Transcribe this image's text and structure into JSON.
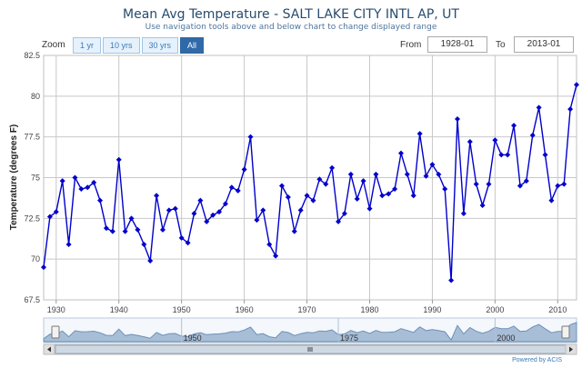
{
  "title": "Mean Avg Temperature - SALT LAKE CITY INTL AP, UT",
  "subtitle": "Use navigation tools above and below chart to change displayed range",
  "zoom": {
    "label": "Zoom",
    "buttons": [
      "1 yr",
      "10 yrs",
      "30 yrs",
      "All"
    ],
    "active": "All"
  },
  "range": {
    "from_label": "From",
    "from_value": "1928-01",
    "to_label": "To",
    "to_value": "2013-01"
  },
  "powered_by": "Powered by ACIS",
  "colors": {
    "series": "#0000cc",
    "navigator_fill": "#a7bed6",
    "navigator_line": "#6f90b8"
  },
  "chart_data": {
    "type": "line",
    "title": "Mean Avg Temperature - SALT LAKE CITY INTL AP, UT",
    "ylabel": "Temperature (degrees F)",
    "xlabel": "",
    "xlim": [
      1928,
      2013
    ],
    "ylim": [
      67.5,
      82.5
    ],
    "x_ticks": [
      "1930",
      "1940",
      "1950",
      "1960",
      "1970",
      "1980",
      "1990",
      "2000",
      "2010"
    ],
    "y_ticks": [
      "67.5",
      "70",
      "72.5",
      "75",
      "77.5",
      "80",
      "82.5"
    ],
    "navigator_ticks": [
      "1950",
      "1975",
      "2000"
    ],
    "grid": true,
    "series": [
      {
        "x": [
          1928,
          1929,
          1930,
          1931,
          1932,
          1933,
          1934,
          1935,
          1936,
          1937,
          1938,
          1939,
          1940,
          1941,
          1942,
          1943,
          1944,
          1945,
          1946,
          1947,
          1948,
          1949,
          1950,
          1951,
          1952,
          1953,
          1954,
          1955,
          1956,
          1957,
          1958,
          1959,
          1960,
          1961,
          1962,
          1963,
          1964,
          1965,
          1966,
          1967,
          1968,
          1969,
          1970,
          1971,
          1972,
          1973,
          1974,
          1975,
          1976,
          1977,
          1978,
          1979,
          1980,
          1981,
          1982,
          1983,
          1984,
          1985,
          1986,
          1987,
          1988,
          1989,
          1990,
          1991,
          1992,
          1993,
          1994,
          1995,
          1996,
          1997,
          1998,
          1999,
          2000,
          2001,
          2002,
          2003,
          2004,
          2005,
          2006,
          2007,
          2008,
          2009,
          2010,
          2011,
          2012,
          2013
        ],
        "values": [
          69.5,
          72.6,
          72.9,
          74.8,
          70.9,
          75.0,
          74.3,
          74.4,
          74.7,
          73.6,
          71.9,
          71.7,
          76.1,
          71.7,
          72.5,
          71.8,
          70.9,
          69.9,
          73.9,
          71.8,
          73.0,
          73.1,
          71.3,
          71.0,
          72.8,
          73.6,
          72.3,
          72.7,
          72.9,
          73.4,
          74.4,
          74.2,
          75.5,
          77.5,
          72.4,
          73.0,
          70.9,
          70.2,
          74.5,
          73.8,
          71.7,
          73.0,
          73.9,
          73.6,
          74.9,
          74.6,
          75.6,
          72.3,
          72.8,
          75.2,
          73.7,
          74.8,
          73.1,
          75.2,
          73.9,
          74.0,
          74.3,
          76.5,
          75.2,
          73.9,
          77.7,
          75.1,
          75.8,
          75.2,
          74.3,
          68.7,
          78.6,
          72.8,
          77.2,
          74.6,
          73.3,
          74.6,
          77.3,
          76.4,
          76.4,
          78.2,
          74.5,
          74.8,
          77.6,
          79.3,
          76.4,
          73.6,
          74.5,
          74.6,
          79.2,
          80.7
        ]
      }
    ]
  }
}
